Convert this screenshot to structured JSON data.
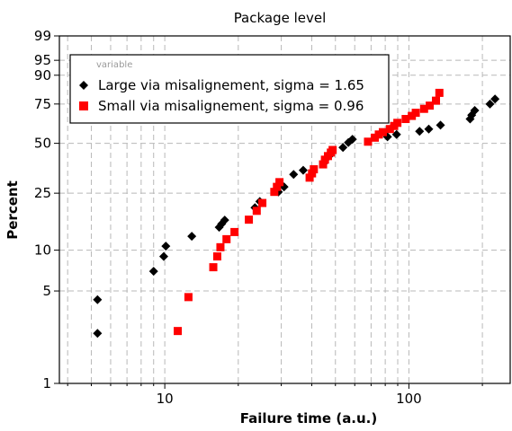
{
  "chart_data": {
    "type": "scatter",
    "title": "Package level",
    "xlabel": "Failure time (a.u.)",
    "ylabel": "Percent",
    "x_scale": "log",
    "y_scale": "weibull-probability",
    "xlim": [
      3.7,
      260
    ],
    "ylim": [
      1,
      99
    ],
    "x_ticks": [
      10,
      100
    ],
    "x_tick_labels": [
      "10",
      "100"
    ],
    "x_minor_ticks": [
      4,
      5,
      6,
      7,
      8,
      9,
      20,
      30,
      40,
      50,
      60,
      70,
      80,
      90,
      200
    ],
    "y_ticks": [
      1,
      5,
      10,
      25,
      50,
      75,
      90,
      95,
      99
    ],
    "y_tick_labels": [
      "1",
      "5",
      "10",
      "25",
      "50",
      "75",
      "90",
      "95",
      "99"
    ],
    "grid": true,
    "legend": {
      "title": "variable",
      "position": "top-left"
    },
    "series": [
      {
        "name": "Large via misalignement, sigma = 1.65",
        "marker": "diamond",
        "color": "#000000",
        "points": [
          [
            5.3,
            2.4
          ],
          [
            5.3,
            4.3
          ],
          [
            9.0,
            7.0
          ],
          [
            9.9,
            9.0
          ],
          [
            10.1,
            10.7
          ],
          [
            12.9,
            12.6
          ],
          [
            16.7,
            14.6
          ],
          [
            17.1,
            15.4
          ],
          [
            17.6,
            16.4
          ],
          [
            23.4,
            20.0
          ],
          [
            24.5,
            22.0
          ],
          [
            29.2,
            25.5
          ],
          [
            30.8,
            27.5
          ],
          [
            33.7,
            33.0
          ],
          [
            36.9,
            35.0
          ],
          [
            45.1,
            39.0
          ],
          [
            45.8,
            41.0
          ],
          [
            47.5,
            43.0
          ],
          [
            53.7,
            47.5
          ],
          [
            56.5,
            50.5
          ],
          [
            58.7,
            52.5
          ],
          [
            81.7,
            54.0
          ],
          [
            89.0,
            55.5
          ],
          [
            110.6,
            57.5
          ],
          [
            120.6,
            59.0
          ],
          [
            134.7,
            61.5
          ],
          [
            178.1,
            65.5
          ],
          [
            180.8,
            68.0
          ],
          [
            186.1,
            71.0
          ],
          [
            214.8,
            75.0
          ],
          [
            225.3,
            78.0
          ]
        ]
      },
      {
        "name": "Small via misalignement, sigma = 0.96",
        "marker": "square",
        "color": "#ff0000",
        "points": [
          [
            11.3,
            2.5
          ],
          [
            12.5,
            4.5
          ],
          [
            15.8,
            7.5
          ],
          [
            16.4,
            9.0
          ],
          [
            16.9,
            10.5
          ],
          [
            17.9,
            12.0
          ],
          [
            19.3,
            13.5
          ],
          [
            22.1,
            16.5
          ],
          [
            23.8,
            19.0
          ],
          [
            25.1,
            21.5
          ],
          [
            28.1,
            25.5
          ],
          [
            28.8,
            27.5
          ],
          [
            29.5,
            29.5
          ],
          [
            39.2,
            31.5
          ],
          [
            40.1,
            33.5
          ],
          [
            40.8,
            35.5
          ],
          [
            44.5,
            38.0
          ],
          [
            45.3,
            40.5
          ],
          [
            46.6,
            42.5
          ],
          [
            47.9,
            44.5
          ],
          [
            48.7,
            46.0
          ],
          [
            68.0,
            51.0
          ],
          [
            72.5,
            53.5
          ],
          [
            75.3,
            55.5
          ],
          [
            78.2,
            57.0
          ],
          [
            83.6,
            59.0
          ],
          [
            87.0,
            61.0
          ],
          [
            89.7,
            63.0
          ],
          [
            97.0,
            65.5
          ],
          [
            102.8,
            67.5
          ],
          [
            106.7,
            69.5
          ],
          [
            115.4,
            72.0
          ],
          [
            121.7,
            74.0
          ],
          [
            129.1,
            77.0
          ],
          [
            133.3,
            81.5
          ]
        ]
      }
    ]
  }
}
